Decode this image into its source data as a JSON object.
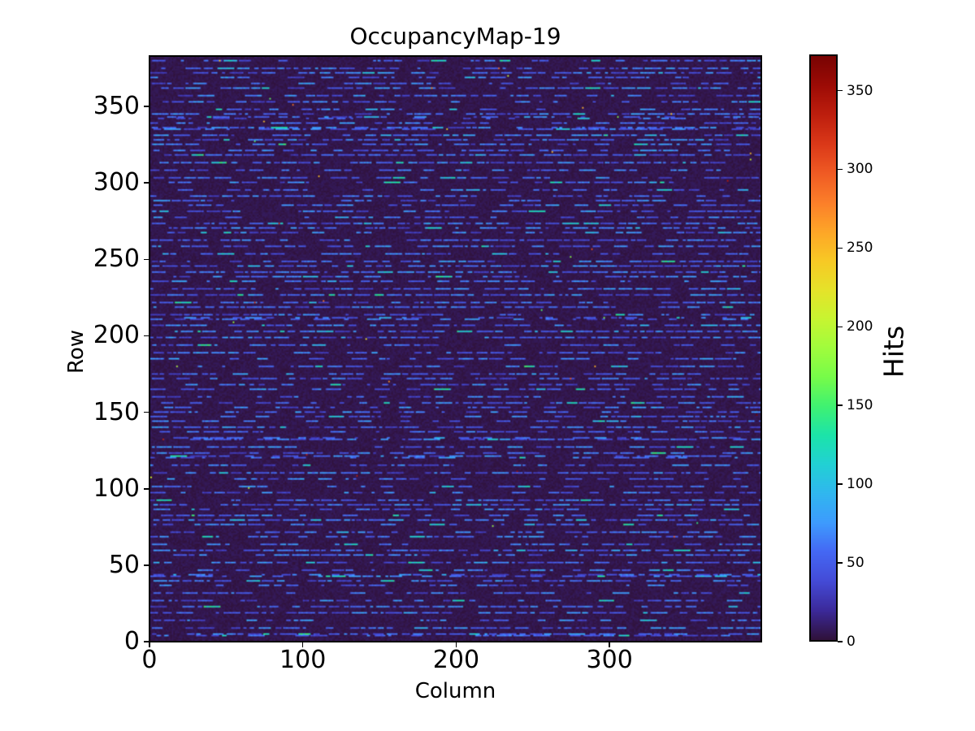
{
  "figure": {
    "title": "OccupancyMap-19",
    "background_color": "#ffffff",
    "text_color": "#000000"
  },
  "axes": {
    "xlabel": "Column",
    "ylabel": "Row",
    "x_ticks": [
      0,
      100,
      200,
      300
    ],
    "y_ticks": [
      0,
      50,
      100,
      150,
      200,
      250,
      300,
      350
    ],
    "x_range": [
      0,
      400
    ],
    "y_range": [
      0,
      384
    ]
  },
  "colorbar": {
    "label": "Hits",
    "ticks": [
      0,
      50,
      100,
      150,
      200,
      250,
      300,
      350
    ],
    "vmin": 0,
    "vmax": 373,
    "colormap": "turbo",
    "tick_side": "right"
  },
  "chart_data": {
    "type": "heatmap",
    "title": "OccupancyMap-19",
    "xlabel": "Column",
    "ylabel": "Row",
    "colorbar_label": "Hits",
    "colormap": "turbo",
    "grid": {
      "cols": 400,
      "rows": 384
    },
    "value_range": [
      0,
      373
    ],
    "x_ticks": [
      0,
      100,
      200,
      300
    ],
    "y_ticks": [
      0,
      50,
      100,
      150,
      200,
      250,
      300,
      350
    ],
    "colorbar_ticks": [
      0,
      50,
      100,
      150,
      200,
      250,
      300,
      350
    ],
    "origin": "lower",
    "grid_lines": false,
    "pattern": {
      "description": "Pixel-detector occupancy map: dark-purple background (~0 hits) with horizontal dashed streaks of ~30-80 hits on roughly every 3rd-5th row, occasional brighter cyan dashes ~90-130 hits, and a few isolated hot pixels up to 373 hits.",
      "seed": 19,
      "background_hits_range": [
        0,
        7
      ],
      "active_row_spacing_range": [
        3,
        5
      ],
      "extra_adjacent_row_probability": 0.08,
      "row_dash_density_range": [
        0.5,
        0.85
      ],
      "dash_length_cols_range": [
        2,
        11
      ],
      "gap_length_cols_range": [
        1,
        3
      ],
      "dash_hits_range": [
        28,
        78
      ],
      "bright_dash_probability": 0.06,
      "bright_dash_hits_range": [
        85,
        130
      ],
      "random_hot_pixel_count": 36,
      "hot_pixel_hits_range": [
        140,
        373
      ],
      "notable_hot_pixels": [
        {
          "col": 397,
          "row": 148,
          "hits": 373
        },
        {
          "col": 291,
          "row": 180,
          "hits": 255
        },
        {
          "col": 68,
          "row": 328,
          "hits": 155
        },
        {
          "col": 74,
          "row": 341,
          "hits": 250
        }
      ]
    }
  }
}
